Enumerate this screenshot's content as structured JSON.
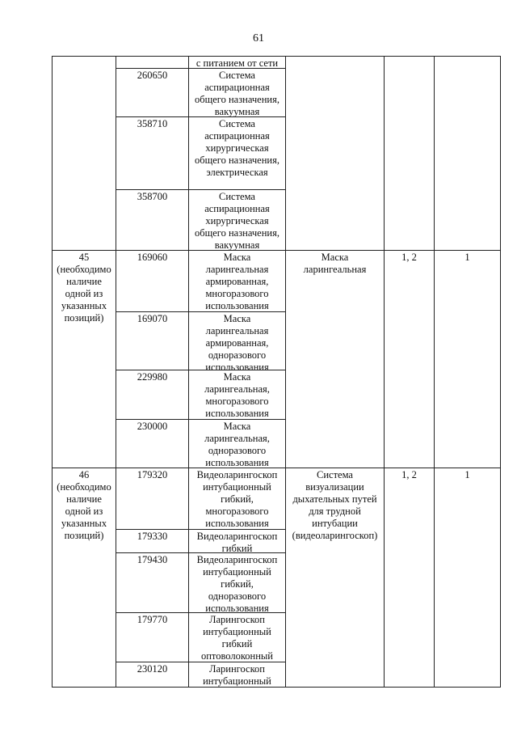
{
  "page_number": "61",
  "groups": [
    {
      "number": "",
      "rows": [
        {
          "code": "",
          "name": "с питанием от сети"
        },
        {
          "code": "260650",
          "name": "Система\nаспирационная\nобщего назначения,\nвакуумная"
        },
        {
          "code": "358710",
          "name": "Система\nаспирационная\nхирургическая\nобщего назначения,\nэлектрическая"
        },
        {
          "code": "358700",
          "name": "Система\nаспирационная\nхирургическая\nобщего назначения,\nвакуумная"
        }
      ],
      "device": "",
      "conditions": "",
      "quantity": ""
    },
    {
      "number": "45\n(необходимо\nналичие\nодной из\nуказанных\nпозиций)",
      "rows": [
        {
          "code": "169060",
          "name": "Маска\nларингеальная\nармированная,\nмногоразового\nиспользования"
        },
        {
          "code": "169070",
          "name": "Маска\nларингеальная\nармированная,\nодноразового\nиспользования"
        },
        {
          "code": "229980",
          "name": "Маска\nларингеальная,\nмногоразового\nиспользования"
        },
        {
          "code": "230000",
          "name": "Маска\nларингеальная,\nодноразового\nиспользования"
        }
      ],
      "device": "Маска\nларингеальная",
      "conditions": "1, 2",
      "quantity": "1"
    },
    {
      "number": "46\n(необходимо\nналичие\nодной из\nуказанных\nпозиций)",
      "rows": [
        {
          "code": "179320",
          "name": "Видеоларингоскоп\nинтубационный\nгибкий,\nмногоразового\nиспользования"
        },
        {
          "code": "179330",
          "name": "Видеоларингоскоп\nгибкий"
        },
        {
          "code": "179430",
          "name": "Видеоларингоскоп\nинтубационный\nгибкий,\nодноразового\nиспользования"
        },
        {
          "code": "179770",
          "name": "Ларингоскоп\nинтубационный\nгибкий\nоптоволоконный"
        },
        {
          "code": "230120",
          "name": "Ларингоскоп\nинтубационный"
        }
      ],
      "device": "Система\nвизуализации\nдыхательных путей\nдля трудной\nинтубации\n(видеоларингоскоп)",
      "conditions": "1, 2",
      "quantity": "1"
    }
  ]
}
